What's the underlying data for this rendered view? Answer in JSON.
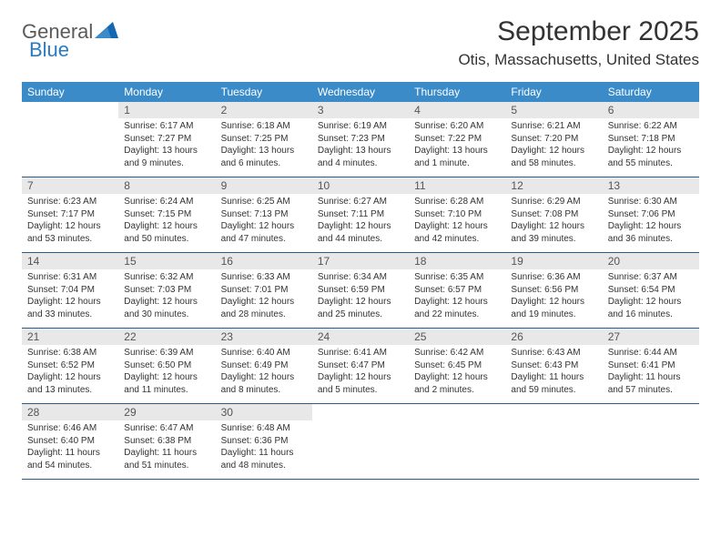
{
  "logo": {
    "top": "General",
    "bottom": "Blue"
  },
  "title": "September 2025",
  "location": "Otis, Massachusetts, United States",
  "colors": {
    "header_bg": "#3b8bc8",
    "header_text": "#ffffff",
    "numrow_bg": "#e8e8e8",
    "border": "#2a5a8a",
    "text": "#333333",
    "logo_gray": "#5a5a5a",
    "logo_blue": "#2a7ac0"
  },
  "dow": [
    "Sunday",
    "Monday",
    "Tuesday",
    "Wednesday",
    "Thursday",
    "Friday",
    "Saturday"
  ],
  "weeks": [
    [
      null,
      {
        "n": "1",
        "sr": "Sunrise: 6:17 AM",
        "ss": "Sunset: 7:27 PM",
        "dl": "Daylight: 13 hours and 9 minutes."
      },
      {
        "n": "2",
        "sr": "Sunrise: 6:18 AM",
        "ss": "Sunset: 7:25 PM",
        "dl": "Daylight: 13 hours and 6 minutes."
      },
      {
        "n": "3",
        "sr": "Sunrise: 6:19 AM",
        "ss": "Sunset: 7:23 PM",
        "dl": "Daylight: 13 hours and 4 minutes."
      },
      {
        "n": "4",
        "sr": "Sunrise: 6:20 AM",
        "ss": "Sunset: 7:22 PM",
        "dl": "Daylight: 13 hours and 1 minute."
      },
      {
        "n": "5",
        "sr": "Sunrise: 6:21 AM",
        "ss": "Sunset: 7:20 PM",
        "dl": "Daylight: 12 hours and 58 minutes."
      },
      {
        "n": "6",
        "sr": "Sunrise: 6:22 AM",
        "ss": "Sunset: 7:18 PM",
        "dl": "Daylight: 12 hours and 55 minutes."
      }
    ],
    [
      {
        "n": "7",
        "sr": "Sunrise: 6:23 AM",
        "ss": "Sunset: 7:17 PM",
        "dl": "Daylight: 12 hours and 53 minutes."
      },
      {
        "n": "8",
        "sr": "Sunrise: 6:24 AM",
        "ss": "Sunset: 7:15 PM",
        "dl": "Daylight: 12 hours and 50 minutes."
      },
      {
        "n": "9",
        "sr": "Sunrise: 6:25 AM",
        "ss": "Sunset: 7:13 PM",
        "dl": "Daylight: 12 hours and 47 minutes."
      },
      {
        "n": "10",
        "sr": "Sunrise: 6:27 AM",
        "ss": "Sunset: 7:11 PM",
        "dl": "Daylight: 12 hours and 44 minutes."
      },
      {
        "n": "11",
        "sr": "Sunrise: 6:28 AM",
        "ss": "Sunset: 7:10 PM",
        "dl": "Daylight: 12 hours and 42 minutes."
      },
      {
        "n": "12",
        "sr": "Sunrise: 6:29 AM",
        "ss": "Sunset: 7:08 PM",
        "dl": "Daylight: 12 hours and 39 minutes."
      },
      {
        "n": "13",
        "sr": "Sunrise: 6:30 AM",
        "ss": "Sunset: 7:06 PM",
        "dl": "Daylight: 12 hours and 36 minutes."
      }
    ],
    [
      {
        "n": "14",
        "sr": "Sunrise: 6:31 AM",
        "ss": "Sunset: 7:04 PM",
        "dl": "Daylight: 12 hours and 33 minutes."
      },
      {
        "n": "15",
        "sr": "Sunrise: 6:32 AM",
        "ss": "Sunset: 7:03 PM",
        "dl": "Daylight: 12 hours and 30 minutes."
      },
      {
        "n": "16",
        "sr": "Sunrise: 6:33 AM",
        "ss": "Sunset: 7:01 PM",
        "dl": "Daylight: 12 hours and 28 minutes."
      },
      {
        "n": "17",
        "sr": "Sunrise: 6:34 AM",
        "ss": "Sunset: 6:59 PM",
        "dl": "Daylight: 12 hours and 25 minutes."
      },
      {
        "n": "18",
        "sr": "Sunrise: 6:35 AM",
        "ss": "Sunset: 6:57 PM",
        "dl": "Daylight: 12 hours and 22 minutes."
      },
      {
        "n": "19",
        "sr": "Sunrise: 6:36 AM",
        "ss": "Sunset: 6:56 PM",
        "dl": "Daylight: 12 hours and 19 minutes."
      },
      {
        "n": "20",
        "sr": "Sunrise: 6:37 AM",
        "ss": "Sunset: 6:54 PM",
        "dl": "Daylight: 12 hours and 16 minutes."
      }
    ],
    [
      {
        "n": "21",
        "sr": "Sunrise: 6:38 AM",
        "ss": "Sunset: 6:52 PM",
        "dl": "Daylight: 12 hours and 13 minutes."
      },
      {
        "n": "22",
        "sr": "Sunrise: 6:39 AM",
        "ss": "Sunset: 6:50 PM",
        "dl": "Daylight: 12 hours and 11 minutes."
      },
      {
        "n": "23",
        "sr": "Sunrise: 6:40 AM",
        "ss": "Sunset: 6:49 PM",
        "dl": "Daylight: 12 hours and 8 minutes."
      },
      {
        "n": "24",
        "sr": "Sunrise: 6:41 AM",
        "ss": "Sunset: 6:47 PM",
        "dl": "Daylight: 12 hours and 5 minutes."
      },
      {
        "n": "25",
        "sr": "Sunrise: 6:42 AM",
        "ss": "Sunset: 6:45 PM",
        "dl": "Daylight: 12 hours and 2 minutes."
      },
      {
        "n": "26",
        "sr": "Sunrise: 6:43 AM",
        "ss": "Sunset: 6:43 PM",
        "dl": "Daylight: 11 hours and 59 minutes."
      },
      {
        "n": "27",
        "sr": "Sunrise: 6:44 AM",
        "ss": "Sunset: 6:41 PM",
        "dl": "Daylight: 11 hours and 57 minutes."
      }
    ],
    [
      {
        "n": "28",
        "sr": "Sunrise: 6:46 AM",
        "ss": "Sunset: 6:40 PM",
        "dl": "Daylight: 11 hours and 54 minutes."
      },
      {
        "n": "29",
        "sr": "Sunrise: 6:47 AM",
        "ss": "Sunset: 6:38 PM",
        "dl": "Daylight: 11 hours and 51 minutes."
      },
      {
        "n": "30",
        "sr": "Sunrise: 6:48 AM",
        "ss": "Sunset: 6:36 PM",
        "dl": "Daylight: 11 hours and 48 minutes."
      },
      null,
      null,
      null,
      null
    ]
  ]
}
